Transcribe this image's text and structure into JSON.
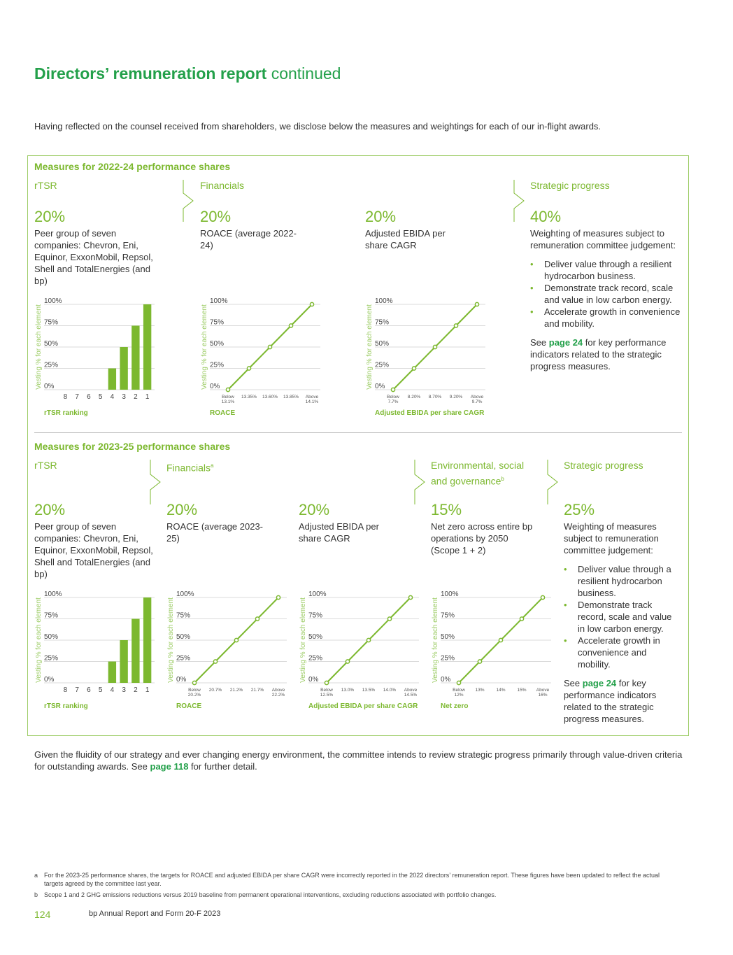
{
  "header": {
    "title_bold": "Directors’ remuneration report",
    "title_light": " continued"
  },
  "intro": "Having reflected on the counsel received from shareholders, we disclose below the measures and weightings for each of our in-flight awards.",
  "colors": {
    "accent": "#7cb82f",
    "title_green": "#23a04a",
    "rule": "#bbbbbb"
  },
  "section1": {
    "title": "Measures for 2022-24 performance shares",
    "heads": {
      "rtsr": "rTSR",
      "financials": "Financials",
      "strategic": "Strategic progress"
    },
    "rtsr": {
      "pct": "20%",
      "desc": "Peer group of seven companies: Chevron, Eni, Equinor, ExxonMobil, Repsol, Shell and TotalEnergies (and bp)"
    },
    "roace": {
      "pct": "20%",
      "desc": "ROACE (average 2022-24)"
    },
    "ebida": {
      "pct": "20%",
      "desc": "Adjusted EBIDA per share CAGR"
    },
    "strategic": {
      "pct": "40%",
      "desc": "Weighting of measures subject to remuneration committee judgement:",
      "bullets": [
        "Deliver value through a resilient hydrocarbon business.",
        "Demonstrate track record, scale and value in low carbon energy.",
        "Accelerate growth in convenience and mobility."
      ],
      "see_pre": "See ",
      "see_link": "page 24",
      "see_post": " for key performance indicators related to the strategic progress measures."
    }
  },
  "section2": {
    "title": "Measures for 2023-25 performance shares",
    "heads": {
      "rtsr": "rTSR",
      "financials": "Financials",
      "financials_sup": "a",
      "esg": "Environmental, social and governance",
      "esg_sup": "b",
      "strategic": "Strategic progress"
    },
    "rtsr": {
      "pct": "20%",
      "desc": "Peer group of seven companies: Chevron, Eni, Equinor, ExxonMobil, Repsol, Shell and TotalEnergies (and bp)"
    },
    "roace": {
      "pct": "20%",
      "desc": "ROACE (average 2023-25)"
    },
    "ebida": {
      "pct": "20%",
      "desc": "Adjusted EBIDA per share CAGR"
    },
    "esg": {
      "pct": "15%",
      "desc": "Net zero across entire bp operations by 2050 (Scope 1 + 2)"
    },
    "strategic": {
      "pct": "25%",
      "desc": "Weighting of measures subject to remuneration committee judgement:",
      "bullets": [
        "Deliver value through a resilient hydrocarbon business.",
        "Demonstrate track record, scale and value in low carbon energy.",
        "Accelerate growth in convenience and mobility."
      ],
      "see_pre": "See ",
      "see_link": "page 24",
      "see_post": " for key performance indicators related to the strategic progress measures."
    }
  },
  "outro": {
    "text": "Given the fluidity of our strategy and ever changing energy environment, the committee intends to review strategic progress primarily through value-driven criteria for outstanding awards. See ",
    "link": "page 118",
    "post": " for further detail."
  },
  "footnotes": [
    {
      "label": "a",
      "text": "For the 2023-25 performance shares, the targets for ROACE and adjusted EBIDA per share CAGR were incorrectly reported in the 2022 directors’ remuneration report. These figures have been updated to reflect the actual targets agreed by the committee last year."
    },
    {
      "label": "b",
      "text": "Scope 1 and 2 GHG emissions reductions versus 2019 baseline from permanent operational interventions, excluding reductions associated with portfolio changes."
    }
  ],
  "footer": {
    "page": "124",
    "report": "bp Annual Report and Form 20-F 2023"
  },
  "chart_data": [
    {
      "id": "c1",
      "type": "bar",
      "ylabel": "Vesting % for each element",
      "xlabel": "rTSR ranking",
      "yticks": [
        "0%",
        "25%",
        "50%",
        "75%",
        "100%"
      ],
      "ylim": [
        0,
        100
      ],
      "categories": [
        "8",
        "7",
        "6",
        "5",
        "4",
        "3",
        "2",
        "1"
      ],
      "values": [
        0,
        0,
        0,
        0,
        25,
        50,
        75,
        100
      ]
    },
    {
      "id": "c2",
      "type": "line",
      "ylabel": "Vesting % for each element",
      "xlabel": "ROACE",
      "yticks": [
        "0%",
        "25%",
        "50%",
        "75%",
        "100%"
      ],
      "ylim": [
        0,
        100
      ],
      "categories": [
        [
          "Below",
          "13.1%"
        ],
        [
          "13.35%"
        ],
        [
          "13.60%"
        ],
        [
          "13.85%"
        ],
        [
          "Above",
          "14.1%"
        ]
      ],
      "values": [
        0,
        25,
        50,
        75,
        100
      ]
    },
    {
      "id": "c3",
      "type": "line",
      "ylabel": "Vesting % for each element",
      "xlabel": "Adjusted EBIDA per share CAGR",
      "yticks": [
        "0%",
        "25%",
        "50%",
        "75%",
        "100%"
      ],
      "ylim": [
        0,
        100
      ],
      "categories": [
        [
          "Below",
          "7.7%"
        ],
        [
          "8.20%"
        ],
        [
          "8.70%"
        ],
        [
          "9.20%"
        ],
        [
          "Above",
          "9.7%"
        ]
      ],
      "values": [
        0,
        25,
        50,
        75,
        100
      ]
    },
    {
      "id": "c4",
      "type": "bar",
      "ylabel": "Vesting % for each element",
      "xlabel": "rTSR ranking",
      "yticks": [
        "0%",
        "25%",
        "50%",
        "75%",
        "100%"
      ],
      "ylim": [
        0,
        100
      ],
      "categories": [
        "8",
        "7",
        "6",
        "5",
        "4",
        "3",
        "2",
        "1"
      ],
      "values": [
        0,
        0,
        0,
        0,
        25,
        50,
        75,
        100
      ]
    },
    {
      "id": "c5",
      "type": "line",
      "ylabel": "Vesting % for each element",
      "xlabel": "ROACE",
      "yticks": [
        "0%",
        "25%",
        "50%",
        "75%",
        "100%"
      ],
      "ylim": [
        0,
        100
      ],
      "categories": [
        [
          "Below",
          "20.2%"
        ],
        [
          "20.7%"
        ],
        [
          "21.2%"
        ],
        [
          "21.7%"
        ],
        [
          "Above",
          "22.2%"
        ]
      ],
      "values": [
        0,
        25,
        50,
        75,
        100
      ]
    },
    {
      "id": "c6",
      "type": "line",
      "ylabel": "Vesting % for each element",
      "xlabel": "Adjusted EBIDA per share CAGR",
      "yticks": [
        "0%",
        "25%",
        "50%",
        "75%",
        "100%"
      ],
      "ylim": [
        0,
        100
      ],
      "categories": [
        [
          "Below",
          "12.5%"
        ],
        [
          "13.0%"
        ],
        [
          "13.5%"
        ],
        [
          "14.0%"
        ],
        [
          "Above",
          "14.5%"
        ]
      ],
      "values": [
        0,
        25,
        50,
        75,
        100
      ]
    },
    {
      "id": "c7",
      "type": "line",
      "ylabel": "Vesting % for each element",
      "xlabel": "Net zero",
      "yticks": [
        "0%",
        "25%",
        "50%",
        "75%",
        "100%"
      ],
      "ylim": [
        0,
        100
      ],
      "categories": [
        [
          "Below",
          "12%"
        ],
        [
          "13%"
        ],
        [
          "14%"
        ],
        [
          "15%"
        ],
        [
          "Above",
          "16%"
        ]
      ],
      "values": [
        0,
        25,
        50,
        75,
        100
      ]
    }
  ]
}
